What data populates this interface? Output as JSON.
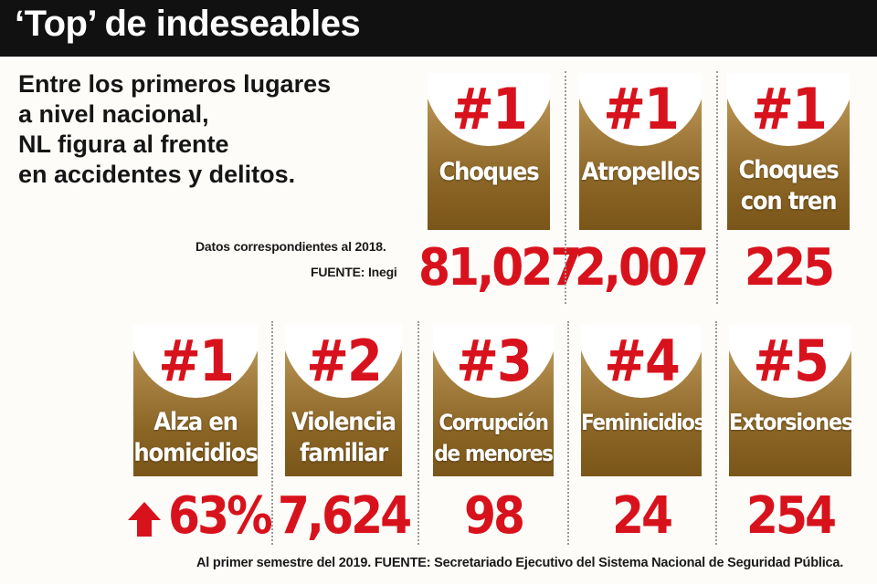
{
  "title": "‘Top’ de indeseables",
  "intro": [
    "Entre los primeros lugares",
    "a nivel nacional,",
    "NL figura al frente",
    "en accidentes y delitos."
  ],
  "notes": {
    "data_year": "Datos correspondientes al 2018.",
    "source_top": "FUENTE: Inegi",
    "footer": "Al primer semestre del 2019.   FUENTE: Secretariado Ejecutivo del Sistema Nacional de Seguridad Pública."
  },
  "colors": {
    "accent": "#d8121c",
    "card_gold": "#a78141",
    "header": "#111111"
  },
  "row1": [
    {
      "rank": "#1",
      "label": [
        "Choques"
      ],
      "value": "81,027"
    },
    {
      "rank": "#1",
      "label": [
        "Atropellos"
      ],
      "value": "2,007"
    },
    {
      "rank": "#1",
      "label": [
        "Choques",
        "con tren"
      ],
      "value": "225"
    }
  ],
  "row2": [
    {
      "rank": "#1",
      "label": [
        "Alza en",
        "homicidios"
      ],
      "value": "63%",
      "icon": "arrow-up-icon"
    },
    {
      "rank": "#2",
      "label": [
        "Violencia",
        "familiar"
      ],
      "value": "7,624"
    },
    {
      "rank": "#3",
      "label": [
        "Corrupción",
        "de menores"
      ],
      "value": "98"
    },
    {
      "rank": "#4",
      "label": [
        "Feminicidios"
      ],
      "value": "24"
    },
    {
      "rank": "#5",
      "label": [
        "Extorsiones"
      ],
      "value": "254"
    }
  ]
}
